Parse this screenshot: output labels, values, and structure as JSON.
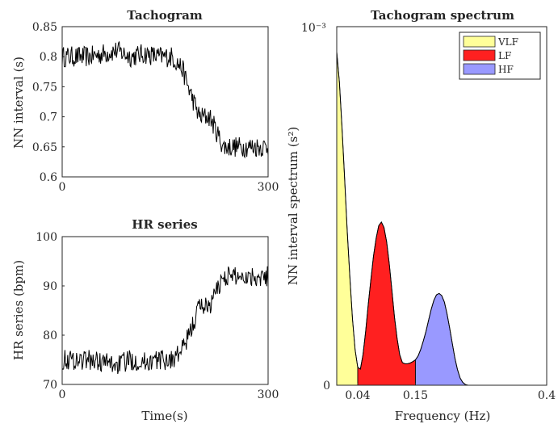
{
  "chart_data": [
    {
      "type": "line",
      "title": "Tachogram",
      "xlabel": "",
      "ylabel": "NN interval (s)",
      "xlim": [
        0,
        300
      ],
      "ylim": [
        0.6,
        0.85
      ],
      "x_ticks": [
        "0",
        "300"
      ],
      "y_ticks": [
        "0.6",
        "0.65",
        "0.7",
        "0.75",
        "0.8",
        "0.85"
      ],
      "grid": false,
      "series": [
        {
          "color": "#000000",
          "x": [
            0,
            20,
            40,
            60,
            80,
            100,
            120,
            140,
            160,
            175,
            185,
            200,
            215,
            235,
            260,
            280,
            300
          ],
          "values": [
            0.8,
            0.8,
            0.8,
            0.805,
            0.81,
            0.8,
            0.805,
            0.8,
            0.8,
            0.78,
            0.745,
            0.7,
            0.7,
            0.65,
            0.65,
            0.65,
            0.65
          ]
        }
      ]
    },
    {
      "type": "line",
      "title": "HR series",
      "xlabel": "Time(s)",
      "ylabel": "HR series (bpm)",
      "xlim": [
        0,
        300
      ],
      "ylim": [
        70,
        100
      ],
      "x_ticks": [
        "0",
        "300"
      ],
      "y_ticks": [
        "70",
        "80",
        "90",
        "100"
      ],
      "grid": false,
      "series": [
        {
          "color": "#000000",
          "x": [
            0,
            20,
            40,
            60,
            80,
            100,
            120,
            140,
            160,
            175,
            185,
            200,
            215,
            235,
            260,
            280,
            300
          ],
          "values": [
            75,
            75,
            75,
            74.5,
            74,
            75,
            74.5,
            75,
            75,
            77,
            80,
            86,
            86,
            92,
            92,
            92,
            92
          ]
        }
      ]
    },
    {
      "type": "area",
      "title": "Tachogram spectrum",
      "xlabel": "Frequency (Hz)",
      "ylabel": "NN interval spectrum (s²)",
      "y_multiplier": "10⁻³",
      "xlim": [
        0,
        0.4
      ],
      "ylim": [
        0,
        1
      ],
      "x_ticks": [
        {
          "label": "0.04",
          "x": 0.04
        },
        {
          "label": "0.15",
          "x": 0.15
        },
        {
          "label": "0.4",
          "x": 0.4
        }
      ],
      "y_ticks": [
        "0"
      ],
      "legend": {
        "position": "top-right"
      },
      "x": [
        0,
        0.005,
        0.01,
        0.015,
        0.02,
        0.025,
        0.03,
        0.035,
        0.04,
        0.045,
        0.05,
        0.055,
        0.06,
        0.065,
        0.07,
        0.075,
        0.08,
        0.085,
        0.09,
        0.095,
        0.1,
        0.105,
        0.11,
        0.115,
        0.12,
        0.125,
        0.13,
        0.135,
        0.14,
        0.145,
        0.15,
        0.155,
        0.16,
        0.165,
        0.17,
        0.175,
        0.18,
        0.185,
        0.19,
        0.195,
        0.2,
        0.205,
        0.21,
        0.215,
        0.22,
        0.225,
        0.23,
        0.235,
        0.24,
        0.245,
        0.25,
        0.26,
        0.28,
        0.3,
        0.32,
        0.34,
        0.36,
        0.38,
        0.4
      ],
      "y_values": [
        0.93,
        0.845,
        0.72,
        0.575,
        0.43,
        0.3,
        0.185,
        0.098,
        0.05,
        0.045,
        0.085,
        0.15,
        0.225,
        0.295,
        0.36,
        0.41,
        0.445,
        0.455,
        0.44,
        0.4,
        0.34,
        0.265,
        0.19,
        0.13,
        0.085,
        0.063,
        0.06,
        0.06,
        0.062,
        0.066,
        0.071,
        0.082,
        0.1,
        0.124,
        0.15,
        0.182,
        0.212,
        0.237,
        0.252,
        0.256,
        0.25,
        0.232,
        0.2,
        0.16,
        0.118,
        0.076,
        0.044,
        0.02,
        0.008,
        0.002,
        0.0,
        0.0,
        0.0,
        0.0,
        0.0,
        0.0,
        0.0,
        0.0,
        0.0
      ],
      "bands": [
        {
          "name": "VLF",
          "from": 0,
          "to": 0.04,
          "color": "#ffff99"
        },
        {
          "name": "LF",
          "from": 0.04,
          "to": 0.15,
          "color": "#ff2020"
        },
        {
          "name": "HF",
          "from": 0.15,
          "to": 0.4,
          "color": "#9999ff"
        }
      ]
    }
  ]
}
